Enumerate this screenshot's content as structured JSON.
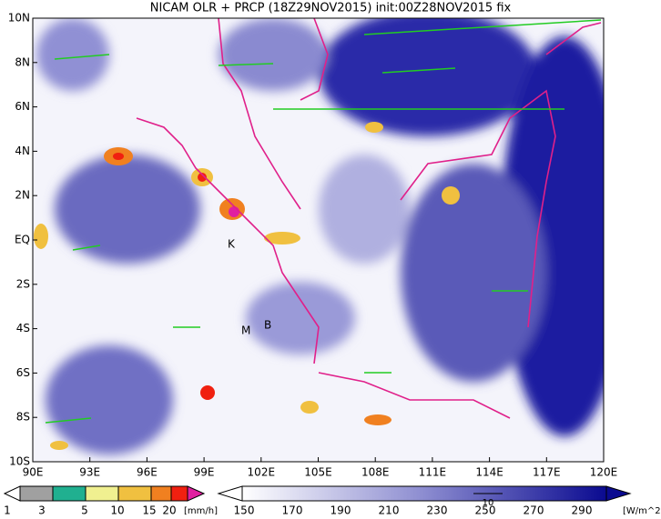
{
  "title": "NICAM OLR + PRCP (18Z29NOV2015) init:00Z28NOV2015 fix",
  "map": {
    "lon_labels": [
      "90E",
      "93E",
      "96E",
      "99E",
      "102E",
      "105E",
      "108E",
      "111E",
      "114E",
      "117E",
      "120E"
    ],
    "lat_labels": [
      "10N",
      "8N",
      "6N",
      "4N",
      "2N",
      "EQ",
      "2S",
      "4S",
      "6S",
      "8S",
      "10S"
    ],
    "place_labels": [
      "K",
      "M",
      "B"
    ]
  },
  "precip_legend": {
    "labels": [
      "1",
      "3",
      "5",
      "10",
      "15",
      "20"
    ],
    "unit": "[mm/h]"
  },
  "olr_legend": {
    "labels": [
      "150",
      "170",
      "190",
      "210",
      "230",
      "250",
      "270",
      "290"
    ],
    "unit": "[W/m^2]"
  },
  "vector_reference": "10"
}
